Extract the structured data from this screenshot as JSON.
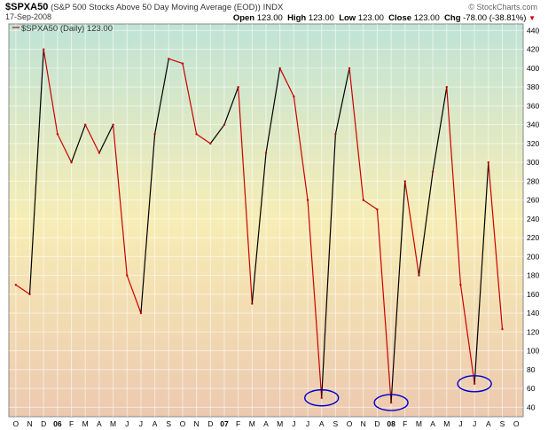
{
  "header": {
    "symbol": "$SPXA50",
    "description": "(S&P 500 Stocks Above 50 Day Moving Average (EOD))",
    "exchange": "INDX",
    "date": "17-Sep-2008",
    "copyright": "© StockCharts.com"
  },
  "ohlc": {
    "open_label": "Open",
    "open": "123.00",
    "high_label": "High",
    "high": "123.00",
    "low_label": "Low",
    "low": "123.00",
    "close_label": "Close",
    "close": "123.00",
    "chg_label": "Chg",
    "chg": "-78.00 (-38.81%)"
  },
  "legend": {
    "label": "$SPXA50 (Daily) 123.00"
  },
  "colors": {
    "line": "#cc0000",
    "rising": "#000000",
    "marker": "#0000cc",
    "bg_top": "#bfe3d6",
    "bg_mid": "#f7edb5",
    "bg_bottom": "#ecc9b0"
  },
  "chart_data": {
    "type": "line",
    "series": [
      {
        "name": "$SPXA50 (Daily)",
        "x": [
          "2005-10",
          "2005-11",
          "2005-12",
          "2006-01",
          "2006-02",
          "2006-03",
          "2006-04",
          "2006-05",
          "2006-06",
          "2006-07",
          "2006-08",
          "2006-09",
          "2006-10",
          "2006-11",
          "2006-12",
          "2007-01",
          "2007-02",
          "2007-03",
          "2007-04",
          "2007-05",
          "2007-06",
          "2007-07",
          "2007-08",
          "2007-09",
          "2007-10",
          "2007-11",
          "2007-12",
          "2008-01",
          "2008-02",
          "2008-03",
          "2008-04",
          "2008-05",
          "2008-06",
          "2008-07",
          "2008-08",
          "2008-09"
        ],
        "values": [
          170,
          160,
          420,
          330,
          300,
          340,
          310,
          340,
          180,
          140,
          330,
          410,
          405,
          330,
          320,
          340,
          380,
          150,
          310,
          400,
          370,
          260,
          50,
          330,
          400,
          260,
          250,
          45,
          280,
          180,
          290,
          380,
          170,
          65,
          300,
          123
        ]
      }
    ],
    "x_tick_labels": [
      "O",
      "N",
      "D",
      "06",
      "F",
      "M",
      "A",
      "M",
      "J",
      "J",
      "A",
      "S",
      "O",
      "N",
      "D",
      "07",
      "F",
      "M",
      "A",
      "M",
      "J",
      "J",
      "A",
      "S",
      "O",
      "N",
      "D",
      "08",
      "F",
      "M",
      "A",
      "M",
      "J",
      "J",
      "A",
      "S",
      "O"
    ],
    "y_ticks": [
      40,
      60,
      80,
      100,
      120,
      140,
      160,
      180,
      200,
      220,
      240,
      260,
      280,
      300,
      320,
      340,
      360,
      380,
      400,
      420,
      440
    ],
    "ylim": [
      30,
      447
    ],
    "grid": true,
    "annotations": [
      {
        "type": "ellipse",
        "x": "2007-08",
        "y": 50
      },
      {
        "type": "ellipse",
        "x": "2008-01",
        "y": 45
      },
      {
        "type": "ellipse",
        "x": "2008-07",
        "y": 65
      }
    ]
  }
}
